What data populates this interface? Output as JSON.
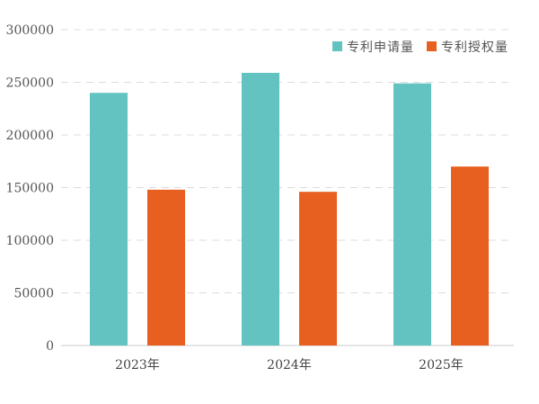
{
  "chart_data": {
    "type": "bar",
    "categories": [
      "2023年",
      "2024年",
      "2025年"
    ],
    "series": [
      {
        "name": "专利申请量",
        "values": [
          240000,
          259000,
          249000
        ],
        "color": "#63c3c0"
      },
      {
        "name": "专利授权量",
        "values": [
          148000,
          146000,
          170000
        ],
        "color": "#e8601f"
      }
    ],
    "yticks": [
      "0",
      "50000",
      "100000",
      "150000",
      "200000",
      "250000",
      "300000"
    ],
    "ylim": [
      0,
      300000
    ],
    "grid": true,
    "legend": "top-right",
    "title": "",
    "xlabel": "",
    "ylabel": ""
  }
}
